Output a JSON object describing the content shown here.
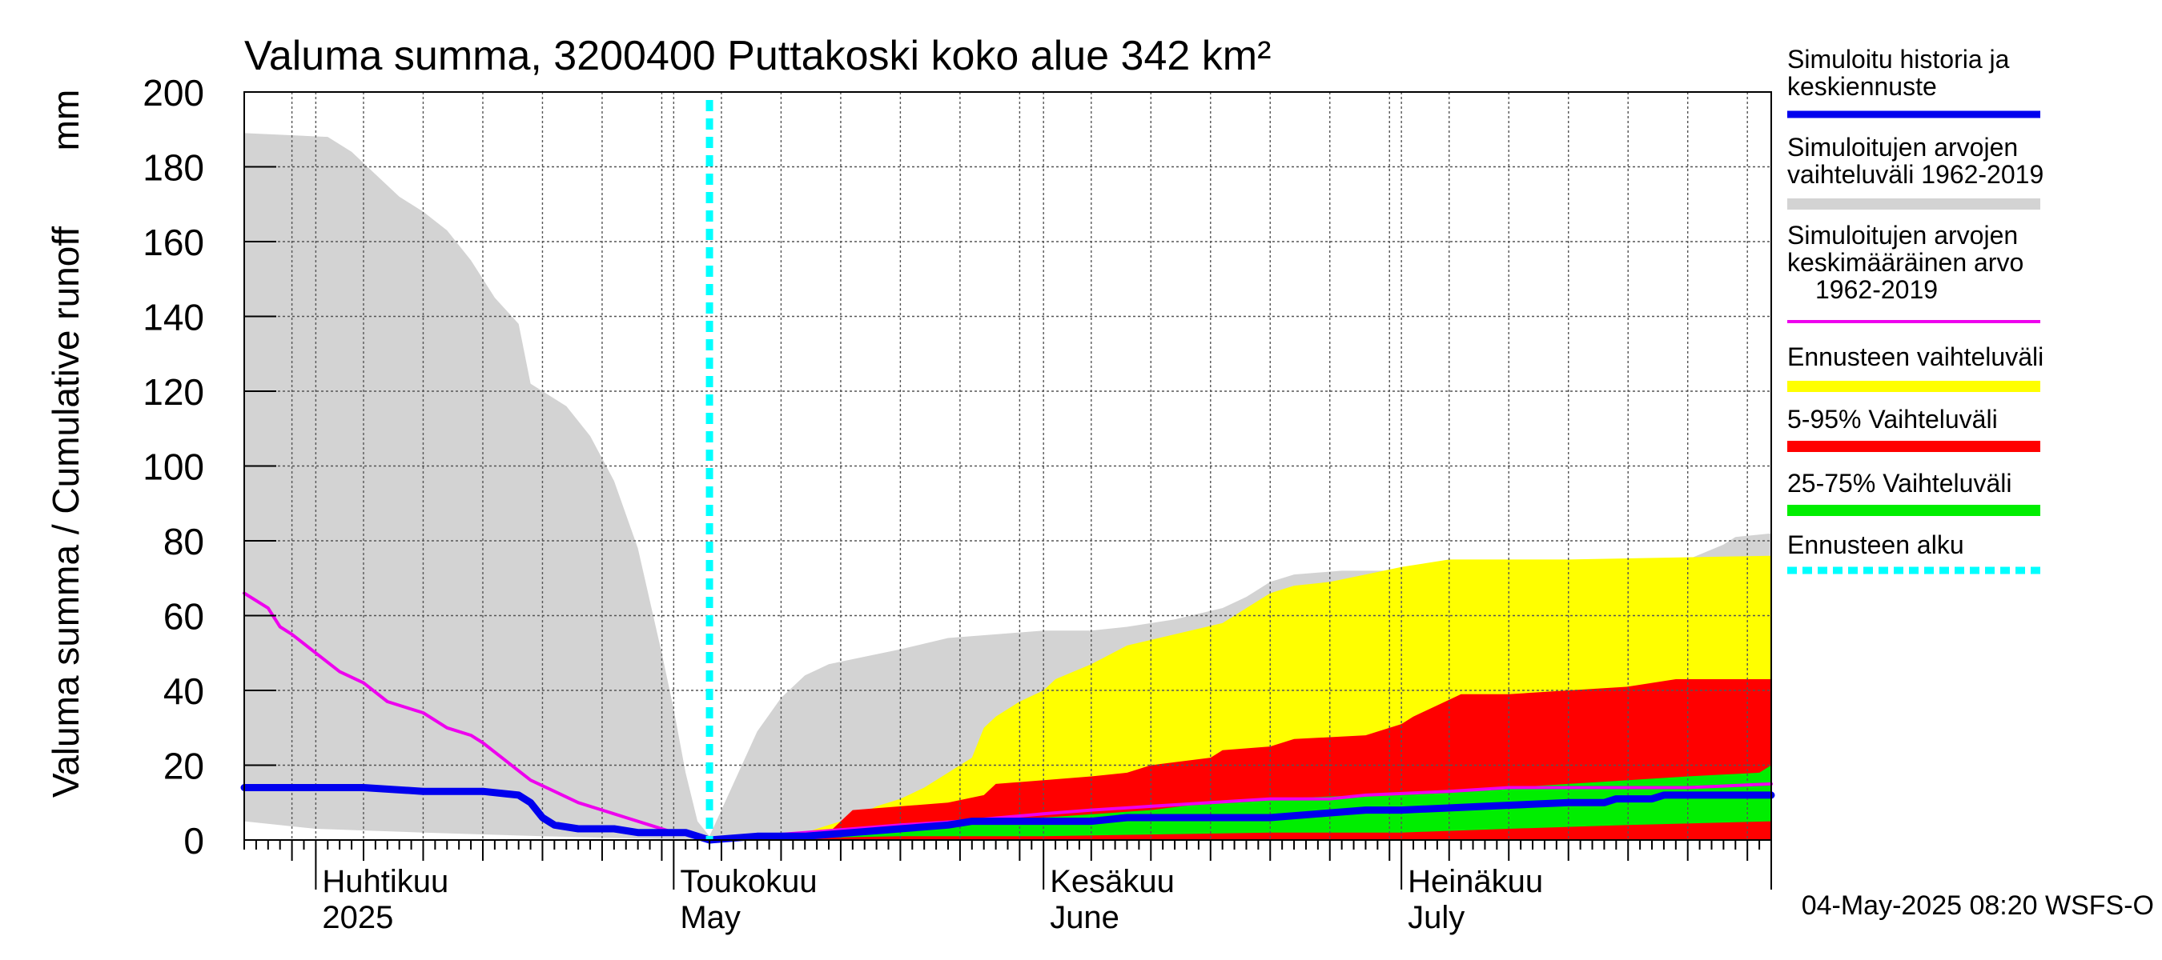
{
  "chart_data": {
    "type": "area",
    "title": "Valuma summa, 3200400 Puttakoski koko alue 342 km²",
    "ylabel": "Valuma summa / Cumulative runoff",
    "yunit": "mm",
    "ylim": [
      0,
      200
    ],
    "yticks": [
      0,
      20,
      40,
      60,
      80,
      100,
      120,
      140,
      160,
      180,
      200
    ],
    "xlim": [
      "2025-03-26",
      "2025-08-01"
    ],
    "month_labels": [
      {
        "line1": "Huhtikuu",
        "line2": "2025",
        "date": "2025-04-01"
      },
      {
        "line1": "Toukokuu",
        "line2": "May",
        "date": "2025-05-01"
      },
      {
        "line1": "Kesäkuu",
        "line2": "June",
        "date": "2025-06-01"
      },
      {
        "line1": "Heinäkuu",
        "line2": "July",
        "date": "2025-07-01"
      }
    ],
    "forecast_start": "2025-05-04",
    "footer": "04-May-2025 08:20 WSFS-O",
    "grid": true,
    "legend_position": "right",
    "legend": [
      {
        "label": "Simuloitu historia ja keskiennuste",
        "lines": [
          "Simuloitu historia ja",
          "keskiennuste"
        ],
        "color": "#0000ee",
        "style": "line"
      },
      {
        "label": "Simuloitujen arvojen vaihteluväli 1962-2019",
        "lines": [
          "Simuloitujen arvojen",
          "vaihteluväli 1962-2019"
        ],
        "color": "#d3d3d3",
        "style": "band"
      },
      {
        "label": "Simuloitujen arvojen keskimääräinen arvo 1962-2019",
        "lines": [
          "Simuloitujen arvojen",
          "keskimääräinen arvo",
          "1962-2019"
        ],
        "color": "#ee00ee",
        "style": "thin"
      },
      {
        "label": "Ennusteen vaihteluväli",
        "lines": [
          "Ennusteen vaihteluväli"
        ],
        "color": "#ffff00",
        "style": "band"
      },
      {
        "label": "5-95% Vaihteluväli",
        "lines": [
          "5-95% Vaihteluväli"
        ],
        "color": "#ff0000",
        "style": "band"
      },
      {
        "label": "25-75% Vaihteluväli",
        "lines": [
          "25-75% Vaihteluväli"
        ],
        "color": "#00ee00",
        "style": "band"
      },
      {
        "label": "Ennusteen alku",
        "lines": [
          "Ennusteen alku"
        ],
        "color": "#00ffff",
        "style": "dotted"
      }
    ],
    "series": [
      {
        "name": "Simuloitujen arvojen vaihteluväli 1962-2019",
        "kind": "band",
        "color": "#d3d3d3",
        "upper": [
          [
            "2025-03-26",
            189
          ],
          [
            "2025-04-02",
            188
          ],
          [
            "2025-04-04",
            184
          ],
          [
            "2025-04-06",
            178
          ],
          [
            "2025-04-08",
            172
          ],
          [
            "2025-04-10",
            168
          ],
          [
            "2025-04-12",
            163
          ],
          [
            "2025-04-14",
            155
          ],
          [
            "2025-04-16",
            145
          ],
          [
            "2025-04-18",
            138
          ],
          [
            "2025-04-19",
            122
          ],
          [
            "2025-04-20",
            120
          ],
          [
            "2025-04-22",
            116
          ],
          [
            "2025-04-24",
            108
          ],
          [
            "2025-04-26",
            96
          ],
          [
            "2025-04-28",
            78
          ],
          [
            "2025-04-30",
            50
          ],
          [
            "2025-05-01",
            35
          ],
          [
            "2025-05-02",
            18
          ],
          [
            "2025-05-03",
            5
          ],
          [
            "2025-05-04",
            1
          ],
          [
            "2025-05-06",
            15
          ],
          [
            "2025-05-08",
            29
          ],
          [
            "2025-05-10",
            38
          ],
          [
            "2025-05-12",
            44
          ],
          [
            "2025-05-14",
            47
          ],
          [
            "2025-05-17",
            49
          ],
          [
            "2025-05-20",
            51
          ],
          [
            "2025-05-24",
            54
          ],
          [
            "2025-05-28",
            55
          ],
          [
            "2025-06-01",
            56
          ],
          [
            "2025-06-05",
            56
          ],
          [
            "2025-06-08",
            57
          ],
          [
            "2025-06-12",
            59
          ],
          [
            "2025-06-16",
            62
          ],
          [
            "2025-06-18",
            65
          ],
          [
            "2025-06-20",
            69
          ],
          [
            "2025-06-22",
            71
          ],
          [
            "2025-06-26",
            72
          ],
          [
            "2025-07-01",
            72
          ],
          [
            "2025-07-05",
            73
          ],
          [
            "2025-07-10",
            73
          ],
          [
            "2025-07-15",
            73
          ],
          [
            "2025-07-20",
            74
          ],
          [
            "2025-07-25",
            75
          ],
          [
            "2025-07-28",
            79
          ],
          [
            "2025-07-29",
            81
          ],
          [
            "2025-08-01",
            82
          ]
        ],
        "lower": [
          [
            "2025-03-26",
            5
          ],
          [
            "2025-04-01",
            3
          ],
          [
            "2025-04-10",
            2
          ],
          [
            "2025-04-20",
            1
          ],
          [
            "2025-05-04",
            0
          ],
          [
            "2025-05-20",
            0
          ],
          [
            "2025-06-20",
            1
          ],
          [
            "2025-07-20",
            2
          ],
          [
            "2025-08-01",
            3
          ]
        ]
      },
      {
        "name": "Ennusteen vaihteluväli",
        "kind": "band",
        "color": "#ffff00",
        "upper": [
          [
            "2025-05-04",
            0
          ],
          [
            "2025-05-08",
            1
          ],
          [
            "2025-05-12",
            2
          ],
          [
            "2025-05-14",
            4
          ],
          [
            "2025-05-16",
            6
          ],
          [
            "2025-05-18",
            9
          ],
          [
            "2025-05-20",
            11
          ],
          [
            "2025-05-22",
            14
          ],
          [
            "2025-05-24",
            18
          ],
          [
            "2025-05-26",
            22
          ],
          [
            "2025-05-27",
            30
          ],
          [
            "2025-05-28",
            33
          ],
          [
            "2025-05-30",
            37
          ],
          [
            "2025-06-01",
            40
          ],
          [
            "2025-06-02",
            43
          ],
          [
            "2025-06-05",
            47
          ],
          [
            "2025-06-08",
            52
          ],
          [
            "2025-06-12",
            55
          ],
          [
            "2025-06-16",
            58
          ],
          [
            "2025-06-18",
            62
          ],
          [
            "2025-06-20",
            66
          ],
          [
            "2025-06-22",
            68
          ],
          [
            "2025-06-25",
            69
          ],
          [
            "2025-06-28",
            71
          ],
          [
            "2025-07-01",
            73
          ],
          [
            "2025-07-05",
            75
          ],
          [
            "2025-07-15",
            75
          ],
          [
            "2025-08-01",
            76
          ]
        ],
        "lower": [
          [
            "2025-05-04",
            0
          ],
          [
            "2025-06-01",
            0
          ],
          [
            "2025-08-01",
            0
          ]
        ]
      },
      {
        "name": "5-95% Vaihteluväli",
        "kind": "band",
        "color": "#ff0000",
        "upper": [
          [
            "2025-05-04",
            0
          ],
          [
            "2025-05-10",
            1
          ],
          [
            "2025-05-14",
            2
          ],
          [
            "2025-05-16",
            8
          ],
          [
            "2025-05-20",
            9
          ],
          [
            "2025-05-24",
            10
          ],
          [
            "2025-05-27",
            12
          ],
          [
            "2025-05-28",
            15
          ],
          [
            "2025-06-01",
            16
          ],
          [
            "2025-06-05",
            17
          ],
          [
            "2025-06-08",
            18
          ],
          [
            "2025-06-10",
            20
          ],
          [
            "2025-06-15",
            22
          ],
          [
            "2025-06-16",
            24
          ],
          [
            "2025-06-20",
            25
          ],
          [
            "2025-06-22",
            27
          ],
          [
            "2025-06-28",
            28
          ],
          [
            "2025-06-30",
            30
          ],
          [
            "2025-07-01",
            31
          ],
          [
            "2025-07-02",
            33
          ],
          [
            "2025-07-04",
            36
          ],
          [
            "2025-07-06",
            39
          ],
          [
            "2025-07-10",
            39
          ],
          [
            "2025-07-15",
            40
          ],
          [
            "2025-07-20",
            41
          ],
          [
            "2025-07-22",
            42
          ],
          [
            "2025-07-24",
            43
          ],
          [
            "2025-08-01",
            43
          ]
        ],
        "lower": [
          [
            "2025-05-04",
            0
          ],
          [
            "2025-06-01",
            0
          ],
          [
            "2025-07-01",
            0
          ],
          [
            "2025-08-01",
            0
          ]
        ]
      },
      {
        "name": "25-75% Vaihteluväli",
        "kind": "band",
        "color": "#00ee00",
        "upper": [
          [
            "2025-05-04",
            0
          ],
          [
            "2025-05-15",
            2
          ],
          [
            "2025-05-25",
            4
          ],
          [
            "2025-06-01",
            6
          ],
          [
            "2025-06-10",
            8
          ],
          [
            "2025-06-15",
            10
          ],
          [
            "2025-06-20",
            11
          ],
          [
            "2025-06-28",
            12
          ],
          [
            "2025-07-05",
            13
          ],
          [
            "2025-07-10",
            14
          ],
          [
            "2025-07-15",
            15
          ],
          [
            "2025-07-20",
            16
          ],
          [
            "2025-07-25",
            17
          ],
          [
            "2025-07-31",
            18
          ],
          [
            "2025-08-01",
            20
          ]
        ],
        "lower": [
          [
            "2025-05-04",
            0
          ],
          [
            "2025-05-20",
            1
          ],
          [
            "2025-06-01",
            1
          ],
          [
            "2025-06-20",
            2
          ],
          [
            "2025-07-01",
            2
          ],
          [
            "2025-07-10",
            3
          ],
          [
            "2025-07-20",
            4
          ],
          [
            "2025-08-01",
            5
          ]
        ]
      },
      {
        "name": "Simuloitujen arvojen keskimääräinen arvo 1962-2019",
        "kind": "line",
        "color": "#ee00ee",
        "width": 4,
        "points": [
          [
            "2025-03-26",
            66
          ],
          [
            "2025-03-28",
            62
          ],
          [
            "2025-03-29",
            57
          ],
          [
            "2025-03-30",
            55
          ],
          [
            "2025-04-01",
            50
          ],
          [
            "2025-04-03",
            45
          ],
          [
            "2025-04-05",
            42
          ],
          [
            "2025-04-07",
            37
          ],
          [
            "2025-04-09",
            35
          ],
          [
            "2025-04-10",
            34
          ],
          [
            "2025-04-12",
            30
          ],
          [
            "2025-04-14",
            28
          ],
          [
            "2025-04-15",
            26
          ],
          [
            "2025-04-17",
            21
          ],
          [
            "2025-04-19",
            16
          ],
          [
            "2025-04-21",
            13
          ],
          [
            "2025-04-23",
            10
          ],
          [
            "2025-04-25",
            8
          ],
          [
            "2025-04-27",
            6
          ],
          [
            "2025-04-29",
            4
          ],
          [
            "2025-05-01",
            2
          ],
          [
            "2025-05-03",
            1
          ],
          [
            "2025-05-04",
            0
          ],
          [
            "2025-05-08",
            1
          ],
          [
            "2025-05-12",
            2
          ],
          [
            "2025-05-16",
            3
          ],
          [
            "2025-05-20",
            4
          ],
          [
            "2025-05-25",
            5
          ],
          [
            "2025-06-01",
            7
          ],
          [
            "2025-06-05",
            8
          ],
          [
            "2025-06-10",
            9
          ],
          [
            "2025-06-15",
            10
          ],
          [
            "2025-06-20",
            11
          ],
          [
            "2025-06-25",
            11
          ],
          [
            "2025-06-28",
            12
          ],
          [
            "2025-07-05",
            13
          ],
          [
            "2025-07-10",
            14
          ],
          [
            "2025-07-15",
            14
          ],
          [
            "2025-07-20",
            14
          ],
          [
            "2025-07-25",
            14
          ],
          [
            "2025-08-01",
            15
          ]
        ]
      },
      {
        "name": "Simuloitu historia ja keskiennuste",
        "kind": "line",
        "color": "#0000ee",
        "width": 9,
        "points": [
          [
            "2025-03-26",
            14
          ],
          [
            "2025-04-01",
            14
          ],
          [
            "2025-04-05",
            14
          ],
          [
            "2025-04-10",
            13
          ],
          [
            "2025-04-15",
            13
          ],
          [
            "2025-04-18",
            12
          ],
          [
            "2025-04-19",
            10
          ],
          [
            "2025-04-20",
            6
          ],
          [
            "2025-04-21",
            4
          ],
          [
            "2025-04-23",
            3
          ],
          [
            "2025-04-26",
            3
          ],
          [
            "2025-04-28",
            2
          ],
          [
            "2025-05-01",
            2
          ],
          [
            "2025-05-02",
            2
          ],
          [
            "2025-05-04",
            0
          ],
          [
            "2025-05-08",
            1
          ],
          [
            "2025-05-12",
            1
          ],
          [
            "2025-05-16",
            2
          ],
          [
            "2025-05-20",
            3
          ],
          [
            "2025-05-24",
            4
          ],
          [
            "2025-05-26",
            5
          ],
          [
            "2025-06-01",
            5
          ],
          [
            "2025-06-05",
            5
          ],
          [
            "2025-06-08",
            6
          ],
          [
            "2025-06-12",
            6
          ],
          [
            "2025-06-20",
            6
          ],
          [
            "2025-06-24",
            7
          ],
          [
            "2025-06-28",
            8
          ],
          [
            "2025-07-01",
            8
          ],
          [
            "2025-07-08",
            9
          ],
          [
            "2025-07-15",
            10
          ],
          [
            "2025-07-18",
            10
          ],
          [
            "2025-07-19",
            11
          ],
          [
            "2025-07-22",
            11
          ],
          [
            "2025-07-23",
            12
          ],
          [
            "2025-08-01",
            12
          ]
        ]
      }
    ]
  }
}
